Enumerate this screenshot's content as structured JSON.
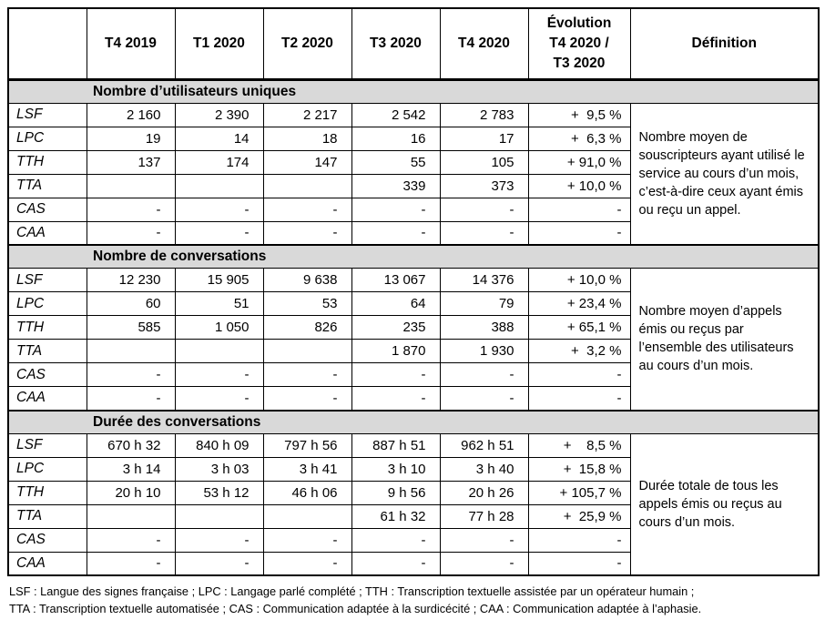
{
  "table": {
    "header": {
      "corner": "",
      "quarters": [
        "T4 2019",
        "T1 2020",
        "T2 2020",
        "T3 2020",
        "T4 2020"
      ],
      "evolution_lines": [
        "Évolution",
        "T4 2020 /",
        "T3 2020"
      ],
      "definition": "Définition"
    },
    "sections": [
      {
        "title": "Nombre d’utilisateurs uniques",
        "definition": "Nombre moyen de souscripteurs ayant utilisé le service au cours d’un mois, c’est-à-dire ceux ayant émis ou reçu un appel.",
        "rows": [
          {
            "label": "LSF",
            "values": [
              "2 160",
              "2 390",
              "2 217",
              "2 542",
              "2 783"
            ],
            "evolution": "+  9,5 %"
          },
          {
            "label": "LPC",
            "values": [
              "19",
              "14",
              "18",
              "16",
              "17"
            ],
            "evolution": "+  6,3 %"
          },
          {
            "label": "TTH",
            "values": [
              "137",
              "174",
              "147",
              "55",
              "105"
            ],
            "evolution": "+ 91,0 %"
          },
          {
            "label": "TTA",
            "values": [
              "",
              "",
              "",
              "339",
              "373"
            ],
            "evolution": "+ 10,0 %"
          },
          {
            "label": "CAS",
            "values": [
              "-",
              "-",
              "-",
              "-",
              "-"
            ],
            "evolution": "-"
          },
          {
            "label": "CAA",
            "values": [
              "-",
              "-",
              "-",
              "-",
              "-"
            ],
            "evolution": "-"
          }
        ]
      },
      {
        "title": "Nombre de conversations",
        "definition": "Nombre moyen d’appels émis ou reçus par l’ensemble des utilisateurs au cours d’un mois.",
        "rows": [
          {
            "label": "LSF",
            "values": [
              "12 230",
              "15 905",
              "9 638",
              "13 067",
              "14 376"
            ],
            "evolution": "+ 10,0 %"
          },
          {
            "label": "LPC",
            "values": [
              "60",
              "51",
              "53",
              "64",
              "79"
            ],
            "evolution": "+ 23,4 %"
          },
          {
            "label": "TTH",
            "values": [
              "585",
              "1 050",
              "826",
              "235",
              "388"
            ],
            "evolution": "+ 65,1 %"
          },
          {
            "label": "TTA",
            "values": [
              "",
              "",
              "",
              "1 870",
              "1 930"
            ],
            "evolution": "+  3,2 %"
          },
          {
            "label": "CAS",
            "values": [
              "-",
              "-",
              "-",
              "-",
              "-"
            ],
            "evolution": "-"
          },
          {
            "label": "CAA",
            "values": [
              "-",
              "-",
              "-",
              "-",
              "-"
            ],
            "evolution": "-"
          }
        ]
      },
      {
        "title": "Durée des conversations",
        "definition": "Durée totale de tous les appels émis ou reçus au cours d’un mois.",
        "rows": [
          {
            "label": "LSF",
            "values": [
              "670 h 32",
              "840 h 09",
              "797 h 56",
              "887 h 51",
              "962 h 51"
            ],
            "evolution": "+    8,5 %"
          },
          {
            "label": "LPC",
            "values": [
              "3 h 14",
              "3 h 03",
              "3 h 41",
              "3 h 10",
              "3 h 40"
            ],
            "evolution": "+  15,8 %"
          },
          {
            "label": "TTH",
            "values": [
              "20 h 10",
              "53 h 12",
              "46 h 06",
              "9 h 56",
              "20 h 26"
            ],
            "evolution": "+ 105,7 %"
          },
          {
            "label": "TTA",
            "values": [
              "",
              "",
              "",
              "61 h 32",
              "77 h 28"
            ],
            "evolution": "+  25,9 %"
          },
          {
            "label": "CAS",
            "values": [
              "-",
              "-",
              "-",
              "-",
              "-"
            ],
            "evolution": "-"
          },
          {
            "label": "CAA",
            "values": [
              "-",
              "-",
              "-",
              "-",
              "-"
            ],
            "evolution": "-"
          }
        ]
      }
    ]
  },
  "footnotes": [
    "LSF : Langue des signes française ; LPC : Langage parlé complété ; TTH : Transcription textuelle assistée par un opérateur humain ;",
    "TTA : Transcription textuelle automatisée ; CAS : Communication adaptée à la surdicécité ; CAA : Communication adaptée à l’aphasie."
  ]
}
